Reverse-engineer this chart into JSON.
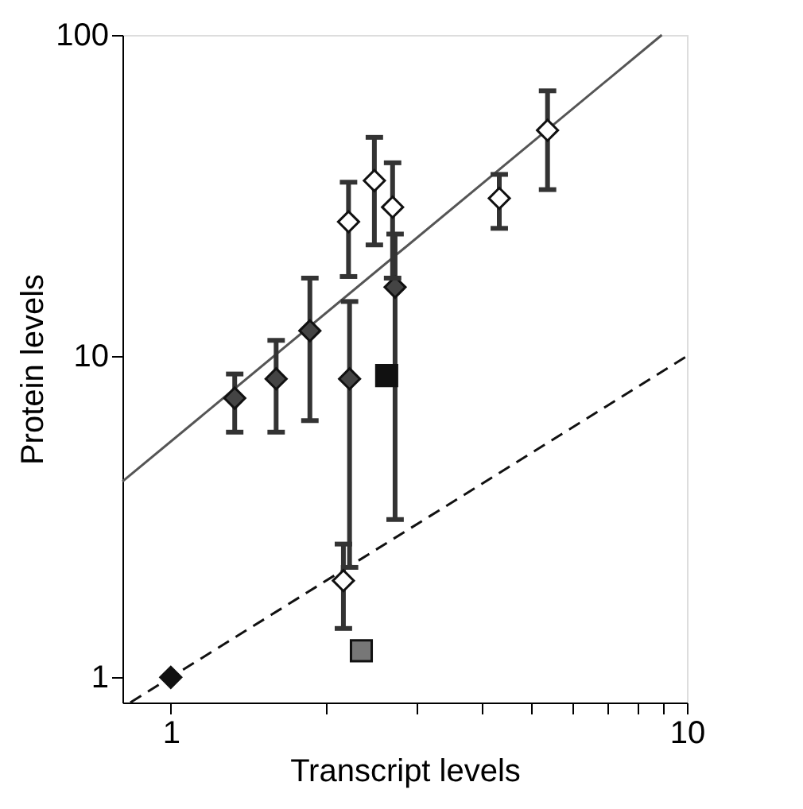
{
  "chart_data": {
    "type": "scatter",
    "xlabel": "Transcript levels",
    "ylabel": "Protein levels",
    "log": "xy",
    "grid": false,
    "xlim": [
      0.806,
      10
    ],
    "ylim": [
      0.835,
      100
    ],
    "xticks": [
      1,
      {
        "value": 2,
        "label": null
      },
      {
        "value": 3,
        "label": null
      },
      {
        "value": 4,
        "label": null
      },
      {
        "value": 5,
        "label": null
      },
      {
        "value": 6,
        "label": null
      },
      {
        "value": 7,
        "label": null
      },
      {
        "value": 8,
        "label": null
      },
      {
        "value": 9,
        "label": null
      },
      10
    ],
    "yticks": [
      1,
      10,
      100
    ],
    "series": [
      {
        "type": "line",
        "color": "#555555",
        "line_style": "solid",
        "marker": "none",
        "x": [
          0.806,
          8.94
        ],
        "values": [
          4.07,
          100
        ]
      },
      {
        "type": "line",
        "color": "#111111",
        "line_style": "dashed",
        "marker": "none",
        "x": [
          0.835,
          10
        ],
        "values": [
          0.835,
          10
        ]
      },
      {
        "color": "#111111",
        "marker": "diamond",
        "x": [
          1
        ],
        "values": [
          1
        ]
      },
      {
        "color": "#444444",
        "marker": "diamond",
        "x": [
          1.33,
          1.6,
          1.86,
          2.22,
          2.72
        ],
        "values": [
          7.4,
          8.5,
          12.0,
          8.5,
          16.4
        ],
        "errors": [
          [
            5.8,
            8.8
          ],
          [
            5.8,
            11.2
          ],
          [
            6.3,
            17.5
          ],
          [
            2.2,
            14.8
          ],
          [
            3.1,
            24
          ]
        ]
      },
      {
        "color": "#111111",
        "marker": "square",
        "x": [
          2.62
        ],
        "values": [
          8.7
        ]
      },
      {
        "color": "#777777",
        "marker": "square",
        "x": [
          2.34
        ],
        "values": [
          1.21
        ]
      },
      {
        "color": "#ffffff",
        "marker": "diamond",
        "x": [
          2.21,
          2.48,
          2.69,
          2.16,
          4.33,
          5.37
        ],
        "values": [
          26.2,
          35.2,
          29.1,
          2.0,
          31,
          50.5
        ],
        "errors": [
          [
            17.7,
            34.8
          ],
          [
            22.2,
            48
          ],
          [
            17.5,
            40
          ],
          [
            1.42,
            2.6
          ],
          [
            25,
            36.8
          ],
          [
            33,
            67
          ]
        ]
      }
    ]
  }
}
